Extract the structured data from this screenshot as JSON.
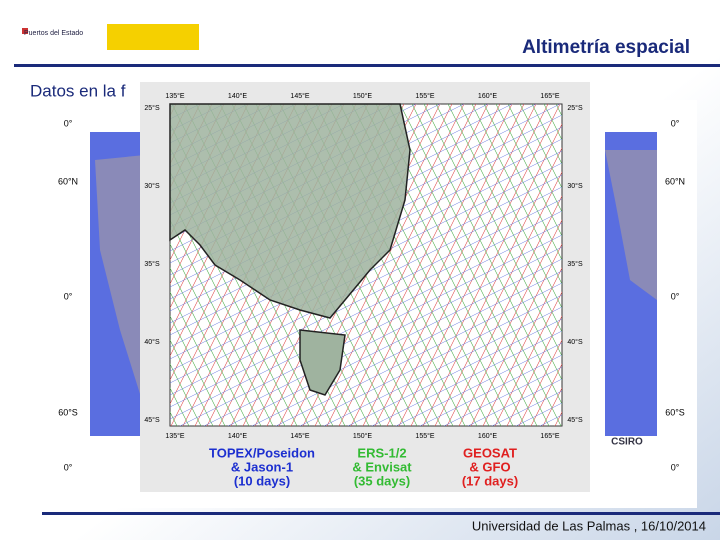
{
  "header": {
    "logo_text": "Puertos del Estado",
    "title": "Altimetría espacial"
  },
  "subtitle": "Datos en la f",
  "figure": {
    "lon_labels": [
      "135°E",
      "140°E",
      "145°E",
      "150°E",
      "155°E",
      "160°E",
      "165°E"
    ],
    "lat_labels": [
      "25°S",
      "30°S",
      "35°S",
      "40°S",
      "45°S"
    ],
    "world_labels": [
      "0°",
      "60°N",
      "0°",
      "60°S",
      "0°"
    ],
    "credit": "CSIRO",
    "legend": [
      {
        "lines": [
          "TOPEX/Poseidon",
          "& Jason-1",
          "(10 days)"
        ],
        "color": "#1c2fd0"
      },
      {
        "lines": [
          "ERS-1/2",
          "& Envisat",
          "(35 days)"
        ],
        "color": "#33bb33"
      },
      {
        "lines": [
          "GEOSAT",
          "& GFO",
          "(17 days)"
        ],
        "color": "#e02020"
      }
    ]
  },
  "footer": "Universidad de Las Palmas , 16/10/2014"
}
